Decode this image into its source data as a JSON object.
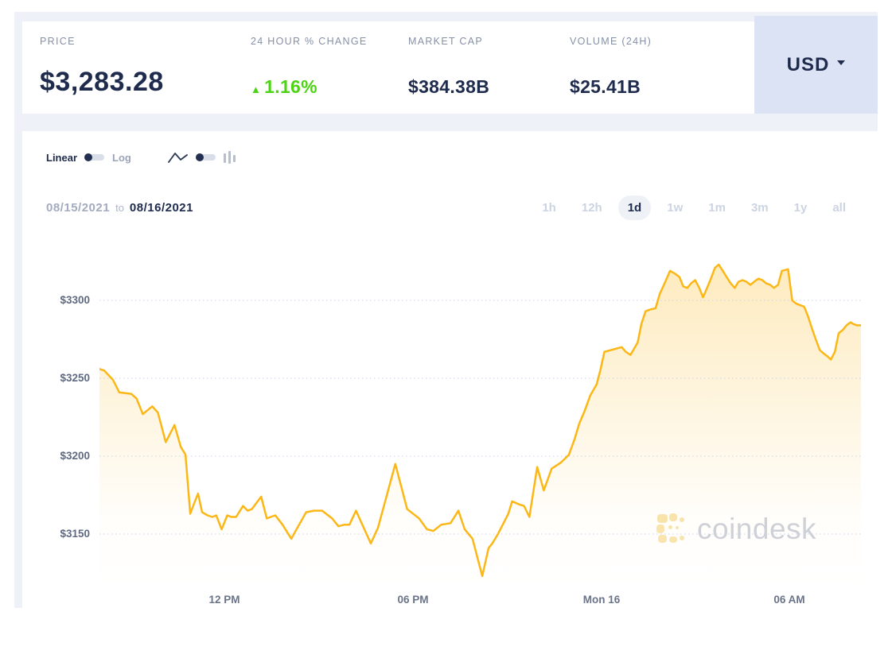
{
  "stats_bar": {
    "price": {
      "label": "PRICE",
      "value": "$3,283.28"
    },
    "change": {
      "label": "24 HOUR % CHANGE",
      "arrow": "▲",
      "value": "1.16%",
      "direction": "up"
    },
    "market_cap": {
      "label": "MARKET CAP",
      "value": "$384.38B"
    },
    "volume": {
      "label": "VOLUME (24H)",
      "value": "$25.41B"
    },
    "currency_selector": {
      "value": "USD"
    }
  },
  "chart_controls": {
    "scale_toggle": {
      "left": "Linear",
      "right": "Log",
      "selected": "Linear"
    },
    "chart_type_toggle": {
      "left_icon": "line-chart-icon",
      "right_icon": "bar-chart-icon",
      "selected": "line"
    }
  },
  "date_range": {
    "start": "08/15/2021",
    "separator": "to",
    "end": "08/16/2021"
  },
  "range_tabs": {
    "options": [
      "1h",
      "12h",
      "1d",
      "1w",
      "1m",
      "3m",
      "1y",
      "all"
    ],
    "active": "1d"
  },
  "watermark": {
    "text": "coindesk"
  },
  "colors": {
    "accent_yellow": "#fbb716",
    "positive_green": "#4bd411",
    "navy_text": "#1e2b4d",
    "label_gray": "#8590a5",
    "usd_button_bg": "#dce3f4",
    "backdrop_gray": "#eef1f8",
    "grid_dotted": "#c9d2e8",
    "inactive_tab": "#ccd3e1",
    "watermark_gray": "#cdd1da"
  },
  "chart_data": {
    "type": "area",
    "title": "",
    "series_name": "Price (USD)",
    "x_unit": "hours_from_start",
    "x_total": 24.25,
    "x_start_label": "08/15/2021 ~08:00 AM",
    "xticks": [
      {
        "label": "12 PM",
        "t": 3.98
      },
      {
        "label": "06 PM",
        "t": 9.98
      },
      {
        "label": "Mon 16",
        "t": 15.98
      },
      {
        "label": "06 AM",
        "t": 21.98
      }
    ],
    "yticks": [
      {
        "label": "$3300",
        "value": 3300
      },
      {
        "label": "$3250",
        "value": 3250
      },
      {
        "label": "$3200",
        "value": 3200
      },
      {
        "label": "$3150",
        "value": 3150
      }
    ],
    "ylim": [
      3114.3,
      3324.5
    ],
    "grid": "horizontal-dotted",
    "line_color": "#fbb716",
    "fill_gradient": [
      "rgba(251,183,26,0.28)",
      "rgba(251,183,26,0)"
    ],
    "points": [
      [
        0,
        3256
      ],
      [
        0.15,
        3255
      ],
      [
        0.43,
        3249
      ],
      [
        0.63,
        3241
      ],
      [
        1.01,
        3240
      ],
      [
        1.18,
        3237
      ],
      [
        1.38,
        3227
      ],
      [
        1.68,
        3232
      ],
      [
        1.86,
        3228
      ],
      [
        2.11,
        3209
      ],
      [
        2.39,
        3220
      ],
      [
        2.59,
        3206
      ],
      [
        2.74,
        3201
      ],
      [
        2.89,
        3163
      ],
      [
        3.02,
        3170
      ],
      [
        3.14,
        3176
      ],
      [
        3.27,
        3164
      ],
      [
        3.44,
        3162
      ],
      [
        3.59,
        3161
      ],
      [
        3.72,
        3162
      ],
      [
        3.89,
        3153
      ],
      [
        4.07,
        3162
      ],
      [
        4.2,
        3161
      ],
      [
        4.35,
        3161
      ],
      [
        4.57,
        3168
      ],
      [
        4.72,
        3165
      ],
      [
        4.85,
        3166
      ],
      [
        5.15,
        3174
      ],
      [
        5.33,
        3160
      ],
      [
        5.45,
        3161
      ],
      [
        5.6,
        3162
      ],
      [
        5.83,
        3156
      ],
      [
        6.11,
        3147
      ],
      [
        6.33,
        3155
      ],
      [
        6.58,
        3164
      ],
      [
        6.83,
        3165
      ],
      [
        7.09,
        3165
      ],
      [
        7.41,
        3160
      ],
      [
        7.61,
        3155
      ],
      [
        7.79,
        3156
      ],
      [
        7.96,
        3156
      ],
      [
        8.17,
        3165
      ],
      [
        8.64,
        3144
      ],
      [
        8.87,
        3154
      ],
      [
        9.42,
        3195
      ],
      [
        9.8,
        3166
      ],
      [
        10.18,
        3160
      ],
      [
        10.43,
        3153
      ],
      [
        10.63,
        3152
      ],
      [
        10.88,
        3156
      ],
      [
        11.18,
        3157
      ],
      [
        11.43,
        3165
      ],
      [
        11.63,
        3153
      ],
      [
        11.88,
        3147
      ],
      [
        12.19,
        3123
      ],
      [
        12.39,
        3141
      ],
      [
        12.51,
        3144
      ],
      [
        12.69,
        3150
      ],
      [
        13.02,
        3163
      ],
      [
        13.14,
        3171
      ],
      [
        13.37,
        3169
      ],
      [
        13.52,
        3168
      ],
      [
        13.69,
        3161
      ],
      [
        13.94,
        3193
      ],
      [
        14.15,
        3178
      ],
      [
        14.4,
        3192
      ],
      [
        14.7,
        3196
      ],
      [
        14.95,
        3201
      ],
      [
        15.13,
        3211
      ],
      [
        15.28,
        3221
      ],
      [
        15.45,
        3229
      ],
      [
        15.63,
        3239
      ],
      [
        15.83,
        3246
      ],
      [
        15.95,
        3255
      ],
      [
        16.08,
        3267
      ],
      [
        16.63,
        3270
      ],
      [
        16.76,
        3267
      ],
      [
        16.91,
        3265
      ],
      [
        17.14,
        3273
      ],
      [
        17.26,
        3285
      ],
      [
        17.39,
        3293
      ],
      [
        17.51,
        3294
      ],
      [
        17.71,
        3295
      ],
      [
        17.84,
        3304
      ],
      [
        18.02,
        3312
      ],
      [
        18.17,
        3319
      ],
      [
        18.34,
        3317
      ],
      [
        18.47,
        3315
      ],
      [
        18.59,
        3309
      ],
      [
        18.72,
        3308
      ],
      [
        18.84,
        3311
      ],
      [
        18.97,
        3313
      ],
      [
        19.1,
        3308
      ],
      [
        19.22,
        3302
      ],
      [
        19.35,
        3308
      ],
      [
        19.47,
        3314
      ],
      [
        19.6,
        3321
      ],
      [
        19.72,
        3323
      ],
      [
        19.85,
        3319
      ],
      [
        19.97,
        3315
      ],
      [
        20.1,
        3311
      ],
      [
        20.23,
        3308
      ],
      [
        20.35,
        3312
      ],
      [
        20.48,
        3313
      ],
      [
        20.6,
        3312
      ],
      [
        20.73,
        3310
      ],
      [
        20.85,
        3312
      ],
      [
        20.98,
        3314
      ],
      [
        21.11,
        3313
      ],
      [
        21.23,
        3311
      ],
      [
        21.36,
        3310
      ],
      [
        21.48,
        3308
      ],
      [
        21.61,
        3310
      ],
      [
        21.73,
        3319
      ],
      [
        21.93,
        3320
      ],
      [
        22.06,
        3300
      ],
      [
        22.18,
        3298
      ],
      [
        22.31,
        3297
      ],
      [
        22.44,
        3296
      ],
      [
        22.56,
        3290
      ],
      [
        22.69,
        3282
      ],
      [
        22.81,
        3275
      ],
      [
        22.94,
        3268
      ],
      [
        23.06,
        3266
      ],
      [
        23.19,
        3264
      ],
      [
        23.29,
        3262
      ],
      [
        23.42,
        3267
      ],
      [
        23.54,
        3279
      ],
      [
        23.67,
        3281
      ],
      [
        23.79,
        3284
      ],
      [
        23.92,
        3286
      ],
      [
        23.99,
        3285
      ],
      [
        24.12,
        3284
      ],
      [
        24.25,
        3284
      ]
    ]
  }
}
